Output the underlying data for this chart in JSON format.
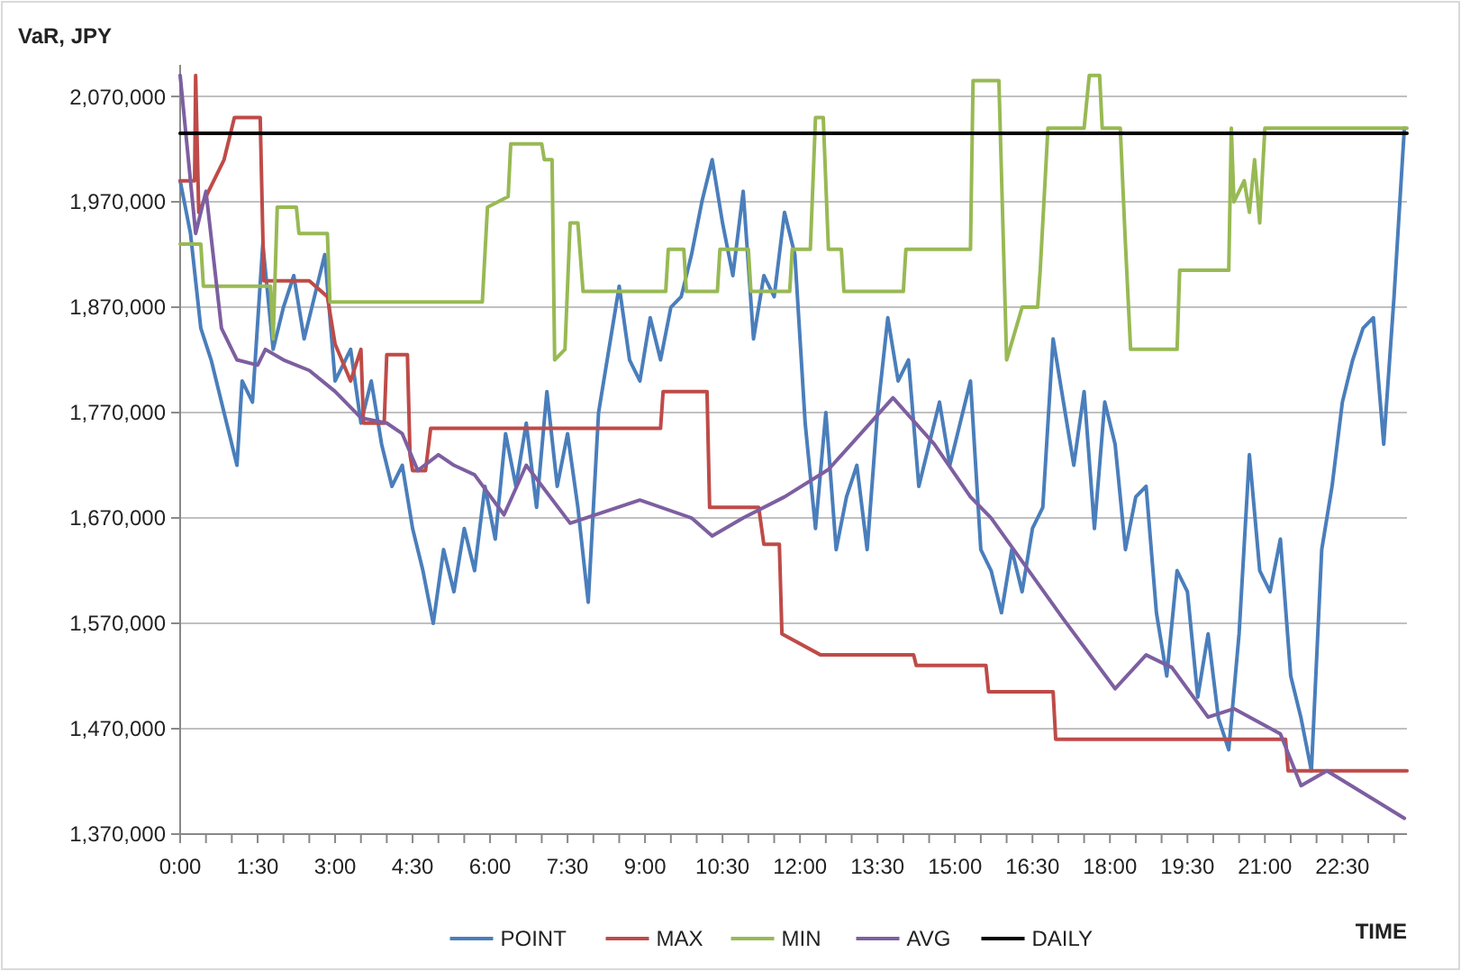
{
  "chart_data": {
    "type": "line",
    "ylabel": "VaR, JPY",
    "xlabel": "TIME",
    "xlim": [
      0,
      23.75
    ],
    "ylim": [
      1370000,
      2100000
    ],
    "yticks": [
      {
        "value": 1370000,
        "label": "1,370,000"
      },
      {
        "value": 1470000,
        "label": "1,470,000"
      },
      {
        "value": 1570000,
        "label": "1,570,000"
      },
      {
        "value": 1670000,
        "label": "1,670,000"
      },
      {
        "value": 1770000,
        "label": "1,770,000"
      },
      {
        "value": 1870000,
        "label": "1,870,000"
      },
      {
        "value": 1970000,
        "label": "1,970,000"
      },
      {
        "value": 2070000,
        "label": "2,070,000"
      }
    ],
    "xticks": [
      {
        "value": 0,
        "label": "0:00"
      },
      {
        "value": 0.5,
        "label": null
      },
      {
        "value": 1,
        "label": null
      },
      {
        "value": 1.5,
        "label": "1:30"
      },
      {
        "value": 2,
        "label": null
      },
      {
        "value": 2.5,
        "label": null
      },
      {
        "value": 3,
        "label": "3:00"
      },
      {
        "value": 3.5,
        "label": null
      },
      {
        "value": 4,
        "label": null
      },
      {
        "value": 4.5,
        "label": "4:30"
      },
      {
        "value": 5,
        "label": null
      },
      {
        "value": 5.5,
        "label": null
      },
      {
        "value": 6,
        "label": "6:00"
      },
      {
        "value": 6.5,
        "label": null
      },
      {
        "value": 7,
        "label": null
      },
      {
        "value": 7.5,
        "label": "7:30"
      },
      {
        "value": 8,
        "label": null
      },
      {
        "value": 8.5,
        "label": null
      },
      {
        "value": 9,
        "label": "9:00"
      },
      {
        "value": 9.5,
        "label": null
      },
      {
        "value": 10,
        "label": null
      },
      {
        "value": 10.5,
        "label": "10:30"
      },
      {
        "value": 11,
        "label": null
      },
      {
        "value": 11.5,
        "label": null
      },
      {
        "value": 12,
        "label": "12:00"
      },
      {
        "value": 12.5,
        "label": null
      },
      {
        "value": 13,
        "label": null
      },
      {
        "value": 13.5,
        "label": "13:30"
      },
      {
        "value": 14,
        "label": null
      },
      {
        "value": 14.5,
        "label": null
      },
      {
        "value": 15,
        "label": "15:00"
      },
      {
        "value": 15.5,
        "label": null
      },
      {
        "value": 16,
        "label": null
      },
      {
        "value": 16.5,
        "label": "16:30"
      },
      {
        "value": 17,
        "label": null
      },
      {
        "value": 17.5,
        "label": null
      },
      {
        "value": 18,
        "label": "18:00"
      },
      {
        "value": 18.5,
        "label": null
      },
      {
        "value": 19,
        "label": null
      },
      {
        "value": 19.5,
        "label": "19:30"
      },
      {
        "value": 20,
        "label": null
      },
      {
        "value": 20.5,
        "label": null
      },
      {
        "value": 21,
        "label": "21:00"
      },
      {
        "value": 21.5,
        "label": null
      },
      {
        "value": 22,
        "label": null
      },
      {
        "value": 22.5,
        "label": "22:30"
      },
      {
        "value": 23,
        "label": null
      },
      {
        "value": 23.5,
        "label": null
      }
    ],
    "grid": "y",
    "legend": "bottom",
    "marker": "none",
    "line_style": "solid",
    "series": [
      {
        "name": "POINT",
        "color": "#4a7ebb",
        "x": [
          0,
          0.2,
          0.4,
          0.6,
          0.9,
          1.1,
          1.2,
          1.4,
          1.6,
          1.8,
          2.0,
          2.2,
          2.4,
          2.6,
          2.8,
          3.0,
          3.3,
          3.5,
          3.7,
          3.9,
          4.1,
          4.3,
          4.5,
          4.7,
          4.9,
          5.1,
          5.3,
          5.5,
          5.7,
          5.9,
          6.1,
          6.3,
          6.5,
          6.7,
          6.9,
          7.1,
          7.3,
          7.5,
          7.7,
          7.9,
          8.1,
          8.3,
          8.5,
          8.7,
          8.9,
          9.1,
          9.3,
          9.5,
          9.7,
          9.9,
          10.1,
          10.3,
          10.5,
          10.7,
          10.9,
          11.1,
          11.3,
          11.5,
          11.7,
          11.9,
          12.1,
          12.3,
          12.5,
          12.7,
          12.9,
          13.1,
          13.3,
          13.5,
          13.7,
          13.9,
          14.1,
          14.3,
          14.5,
          14.7,
          14.9,
          15.1,
          15.3,
          15.5,
          15.7,
          15.9,
          16.1,
          16.3,
          16.5,
          16.7,
          16.9,
          17.1,
          17.3,
          17.5,
          17.7,
          17.9,
          18.1,
          18.3,
          18.5,
          18.7,
          18.9,
          19.1,
          19.3,
          19.5,
          19.7,
          19.9,
          20.1,
          20.3,
          20.5,
          20.7,
          20.9,
          21.1,
          21.3,
          21.5,
          21.7,
          21.9,
          22.1,
          22.3,
          22.5,
          22.7,
          22.9,
          23.1,
          23.3,
          23.5,
          23.7
        ],
        "values": [
          1990000,
          1940000,
          1850000,
          1820000,
          1760000,
          1720000,
          1800000,
          1780000,
          1930000,
          1830000,
          1870000,
          1900000,
          1840000,
          1880000,
          1920000,
          1800000,
          1830000,
          1760000,
          1800000,
          1740000,
          1700000,
          1720000,
          1660000,
          1620000,
          1570000,
          1640000,
          1600000,
          1660000,
          1620000,
          1700000,
          1650000,
          1750000,
          1700000,
          1760000,
          1680000,
          1790000,
          1700000,
          1750000,
          1680000,
          1590000,
          1770000,
          1830000,
          1890000,
          1820000,
          1800000,
          1860000,
          1820000,
          1870000,
          1880000,
          1920000,
          1970000,
          2010000,
          1950000,
          1900000,
          1980000,
          1840000,
          1900000,
          1880000,
          1960000,
          1920000,
          1760000,
          1660000,
          1770000,
          1640000,
          1690000,
          1720000,
          1640000,
          1770000,
          1860000,
          1800000,
          1820000,
          1700000,
          1740000,
          1780000,
          1720000,
          1760000,
          1800000,
          1640000,
          1620000,
          1580000,
          1640000,
          1600000,
          1660000,
          1680000,
          1840000,
          1780000,
          1720000,
          1790000,
          1660000,
          1780000,
          1740000,
          1640000,
          1690000,
          1700000,
          1580000,
          1520000,
          1620000,
          1600000,
          1500000,
          1560000,
          1480000,
          1450000,
          1560000,
          1730000,
          1620000,
          1600000,
          1650000,
          1520000,
          1480000,
          1430000,
          1640000,
          1700000,
          1780000,
          1820000,
          1850000,
          1860000,
          1740000,
          1880000,
          2040000
        ]
      },
      {
        "name": "MAX",
        "color": "#be4b48",
        "x": [
          0,
          0.28,
          0.3,
          0.36,
          0.55,
          0.85,
          1.05,
          1.55,
          1.62,
          2.5,
          2.85,
          3.0,
          3.3,
          3.5,
          3.55,
          3.95,
          4.0,
          4.4,
          4.45,
          4.5,
          4.75,
          4.85,
          9.3,
          9.35,
          10.2,
          10.25,
          11.2,
          11.3,
          11.6,
          11.65,
          12.4,
          14.2,
          14.25,
          15.6,
          15.65,
          16.9,
          16.95,
          21.4,
          21.45,
          23.75
        ],
        "values": [
          1990000,
          1990000,
          2090000,
          1960000,
          1980000,
          2010000,
          2050000,
          2050000,
          1895000,
          1895000,
          1880000,
          1835000,
          1800000,
          1830000,
          1760000,
          1760000,
          1825000,
          1825000,
          1730000,
          1715000,
          1715000,
          1755000,
          1755000,
          1790000,
          1790000,
          1680000,
          1680000,
          1645000,
          1645000,
          1560000,
          1540000,
          1540000,
          1530000,
          1530000,
          1505000,
          1505000,
          1460000,
          1460000,
          1430000,
          1430000
        ]
      },
      {
        "name": "MIN",
        "color": "#98b954",
        "x": [
          0,
          0.4,
          0.45,
          1.75,
          1.8,
          1.88,
          2.25,
          2.3,
          2.85,
          2.9,
          5.85,
          5.95,
          6.35,
          6.4,
          7.0,
          7.05,
          7.2,
          7.25,
          7.45,
          7.55,
          7.7,
          7.8,
          9.4,
          9.45,
          9.75,
          9.8,
          10.4,
          10.45,
          11.0,
          11.05,
          11.8,
          11.85,
          12.2,
          12.3,
          12.45,
          12.55,
          12.8,
          12.85,
          14.0,
          14.05,
          15.3,
          15.35,
          15.85,
          16.0,
          16.3,
          16.6,
          16.65,
          16.8,
          17.5,
          17.6,
          17.8,
          17.85,
          18.2,
          18.3,
          18.4,
          19.3,
          19.35,
          20.3,
          20.35,
          20.4,
          20.6,
          20.7,
          20.8,
          20.9,
          21.0,
          23.75
        ],
        "values": [
          1930000,
          1930000,
          1890000,
          1890000,
          1840000,
          1965000,
          1965000,
          1940000,
          1940000,
          1875000,
          1875000,
          1965000,
          1975000,
          2025000,
          2025000,
          2010000,
          2010000,
          1820000,
          1830000,
          1950000,
          1950000,
          1885000,
          1885000,
          1925000,
          1925000,
          1885000,
          1885000,
          1925000,
          1925000,
          1885000,
          1885000,
          1925000,
          1925000,
          2050000,
          2050000,
          1925000,
          1925000,
          1885000,
          1885000,
          1925000,
          1925000,
          2085000,
          2085000,
          1820000,
          1870000,
          1870000,
          1905000,
          2040000,
          2040000,
          2090000,
          2090000,
          2040000,
          2040000,
          1930000,
          1830000,
          1830000,
          1905000,
          1905000,
          2040000,
          1970000,
          1990000,
          1960000,
          2010000,
          1950000,
          2040000,
          2040000
        ]
      },
      {
        "name": "AVG",
        "color": "#7d5fa0",
        "x": [
          0,
          0.3,
          0.5,
          0.8,
          1.1,
          1.5,
          1.65,
          2.0,
          2.5,
          3.0,
          3.5,
          4.0,
          4.3,
          4.6,
          5.0,
          5.3,
          5.7,
          6.27,
          6.7,
          7.55,
          8.9,
          9.9,
          10.3,
          10.9,
          11.7,
          12.55,
          13.8,
          14.6,
          15.3,
          15.7,
          17.1,
          18.1,
          18.7,
          19.2,
          19.9,
          20.4,
          21.3,
          21.7,
          22.2,
          23.7
        ],
        "values": [
          2090000,
          1940000,
          1980000,
          1850000,
          1820000,
          1815000,
          1830000,
          1820000,
          1810000,
          1790000,
          1765000,
          1760000,
          1750000,
          1715000,
          1730000,
          1720000,
          1711000,
          1673000,
          1720000,
          1665000,
          1687000,
          1670000,
          1653000,
          1670000,
          1690000,
          1716000,
          1784000,
          1740000,
          1690000,
          1670000,
          1574000,
          1508000,
          1540000,
          1528000,
          1481000,
          1489000,
          1465000,
          1416000,
          1430000,
          1385000
        ]
      },
      {
        "name": "DAILY",
        "color": "#000000",
        "x": [
          0,
          23.75
        ],
        "values": [
          2035000,
          2035000
        ]
      }
    ]
  }
}
